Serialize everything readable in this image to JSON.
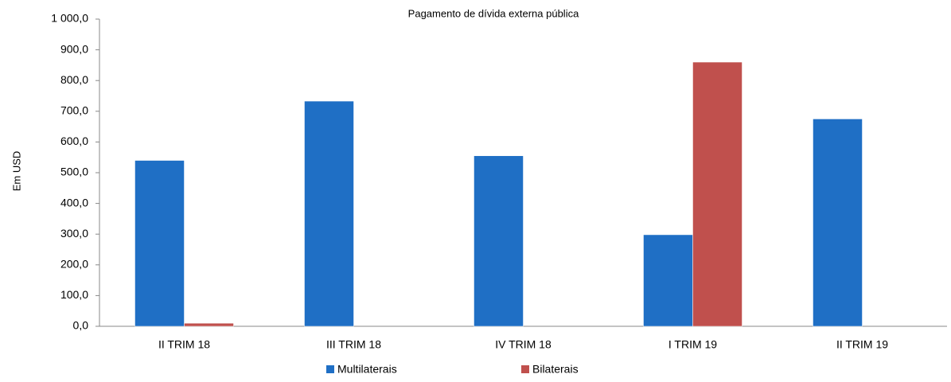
{
  "chart_data": {
    "type": "bar",
    "title": "Pagamento de dívida externa pública",
    "y_label": "Em USD",
    "categories": [
      "II TRIM 18",
      "III TRIM 18",
      "IV TRIM 18",
      "I TRIM 19",
      "II TRIM 19"
    ],
    "series": [
      {
        "name": "Multilaterais",
        "color": "#1f6fc5",
        "values": [
          540,
          733,
          555,
          298,
          675
        ]
      },
      {
        "name": "Bilaterais",
        "color": "#c0504d",
        "values": [
          10,
          0,
          0,
          860,
          0
        ]
      }
    ],
    "ylim": [
      0,
      1000
    ],
    "yticks": [
      {
        "value": 0,
        "label": "0,0"
      },
      {
        "value": 100,
        "label": "100,0"
      },
      {
        "value": 200,
        "label": "200,0"
      },
      {
        "value": 300,
        "label": "300,0"
      },
      {
        "value": 400,
        "label": "400,0"
      },
      {
        "value": 500,
        "label": "500,0"
      },
      {
        "value": 600,
        "label": "600,0"
      },
      {
        "value": 700,
        "label": "700,0"
      },
      {
        "value": 800,
        "label": "800,0"
      },
      {
        "value": 900,
        "label": "900,0"
      },
      {
        "value": 1000,
        "label": "1 000,0"
      }
    ],
    "grid": false,
    "legend": "bottom"
  }
}
